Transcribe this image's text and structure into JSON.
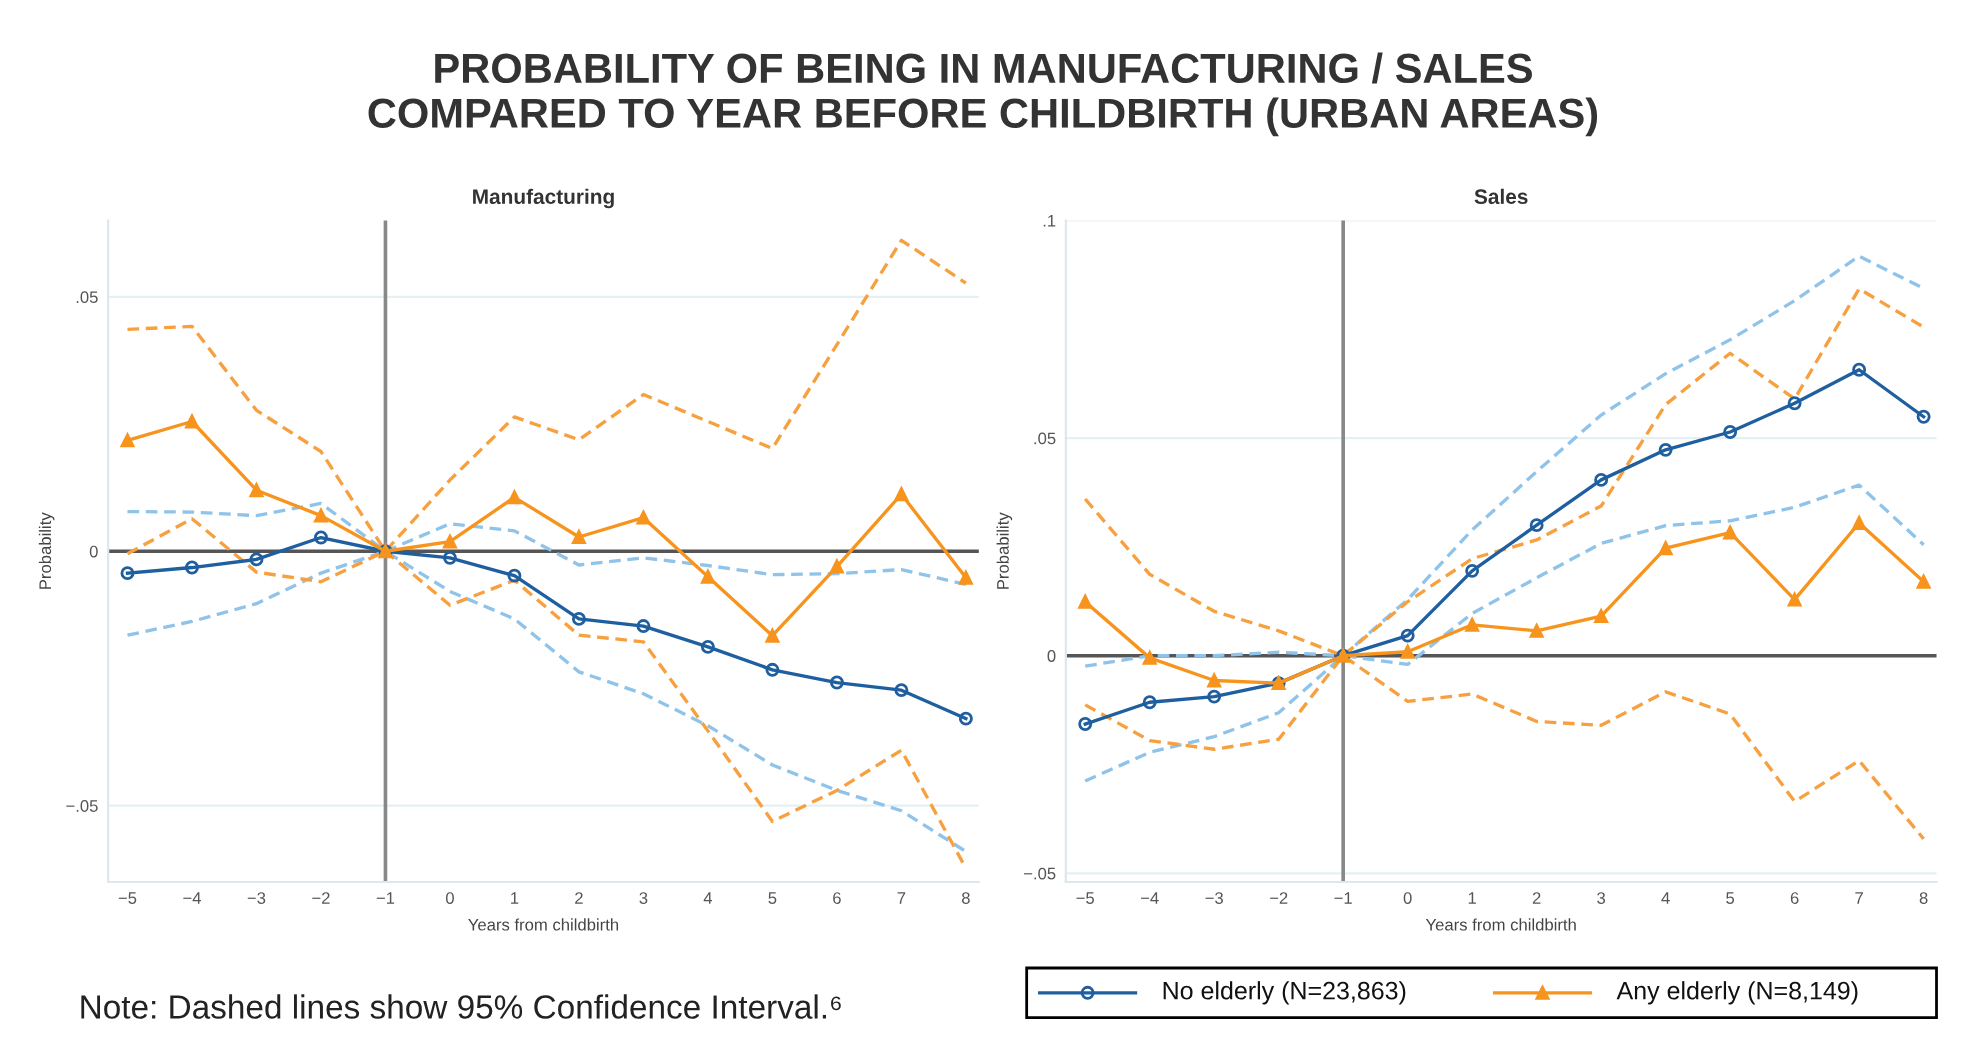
{
  "chart_data": [
    {
      "type": "line",
      "title": "PROBABILITY OF BEING IN MANUFACTURING / SALES\nCOMPARED TO YEAR BEFORE CHILDBIRTH (URBAN AREAS)",
      "subtitle": "Manufacturing",
      "xlabel": "Years from childbirth",
      "ylabel": "Probability",
      "x": [
        -5,
        -4,
        -3,
        -2,
        -1,
        0,
        1,
        2,
        3,
        4,
        5,
        6,
        7,
        8
      ],
      "xlim": [
        -5.3,
        8.2
      ],
      "xticks": [
        {
          "value": -5,
          "label": "−5"
        },
        {
          "value": -4,
          "label": "−4"
        },
        {
          "value": -3,
          "label": "−3"
        },
        {
          "value": -2,
          "label": "−2"
        },
        {
          "value": -1,
          "label": "−1"
        },
        0,
        1,
        2,
        3,
        4,
        5,
        6,
        7,
        8
      ],
      "ylim": [
        -0.065,
        0.065
      ],
      "yticks": [
        {
          "value": -0.05,
          "label": "−.05"
        },
        0,
        {
          "value": 0.05,
          "label": ".05"
        }
      ],
      "grid": "y",
      "legend": false,
      "ref_lines": [
        {
          "axis": "y",
          "value": 0,
          "color": "#555555"
        },
        {
          "axis": "x",
          "value": -1,
          "color": "#888888"
        }
      ],
      "annotations": [
        "Note: Dashed lines show 95% Confidence Interval.⁶"
      ],
      "series": [
        {
          "color": "#8fc3ea",
          "line_style": "dashed",
          "marker": "none",
          "values": [
            0.0078,
            0.0077,
            0.007,
            0.0094,
            0,
            0.0054,
            0.004,
            -0.0027,
            -0.0013,
            -0.0028,
            -0.0046,
            -0.0044,
            -0.0036,
            -0.0065
          ]
        },
        {
          "color": "#8fc3ea",
          "line_style": "dashed",
          "marker": "none",
          "values": [
            -0.0165,
            -0.0138,
            -0.0103,
            -0.0043,
            0,
            -0.0079,
            -0.0133,
            -0.0237,
            -0.028,
            -0.0343,
            -0.042,
            -0.047,
            -0.051,
            -0.059
          ]
        },
        {
          "color": "#f7a040",
          "line_style": "dashed",
          "marker": "none",
          "values": [
            0.0436,
            0.0442,
            0.0277,
            0.0196,
            0,
            0.014,
            0.0264,
            0.0219,
            0.0308,
            0.0255,
            0.0202,
            0.0406,
            0.0611,
            0.0527
          ]
        },
        {
          "color": "#f7a040",
          "line_style": "dashed",
          "marker": "none",
          "values": [
            -0.0005,
            0.0064,
            -0.0041,
            -0.006,
            0,
            -0.0106,
            -0.0057,
            -0.0165,
            -0.0178,
            -0.0353,
            -0.0531,
            -0.047,
            -0.0391,
            -0.0623
          ]
        },
        {
          "color": "#1f5fa0",
          "line_style": "solid",
          "marker": "circle",
          "values": [
            -0.0043,
            -0.0032,
            -0.0016,
            0.0027,
            0,
            -0.0013,
            -0.0048,
            -0.0133,
            -0.0147,
            -0.0188,
            -0.0233,
            -0.0258,
            -0.0273,
            -0.0329
          ]
        },
        {
          "color": "#f7941d",
          "line_style": "solid",
          "marker": "triangle",
          "values": [
            0.0218,
            0.0255,
            0.012,
            0.007,
            0,
            0.0019,
            0.0106,
            0.0028,
            0.0066,
            -0.005,
            -0.0166,
            -0.003,
            0.0112,
            -0.0052
          ]
        }
      ]
    },
    {
      "type": "line",
      "subtitle": "Sales",
      "xlabel": "Years from childbirth",
      "ylabel": "Probability",
      "x": [
        -5,
        -4,
        -3,
        -2,
        -1,
        0,
        1,
        2,
        3,
        4,
        5,
        6,
        7,
        8
      ],
      "xlim": [
        -5.3,
        8.2
      ],
      "xticks": [
        {
          "value": -5,
          "label": "−5"
        },
        {
          "value": -4,
          "label": "−4"
        },
        {
          "value": -3,
          "label": "−3"
        },
        {
          "value": -2,
          "label": "−2"
        },
        {
          "value": -1,
          "label": "−1"
        },
        0,
        1,
        2,
        3,
        4,
        5,
        6,
        7,
        8
      ],
      "ylim": [
        -0.052,
        0.1
      ],
      "yticks": [
        {
          "value": -0.05,
          "label": "−.05"
        },
        0,
        {
          "value": 0.05,
          "label": ".05"
        },
        {
          "value": 0.1,
          "label": ".1"
        }
      ],
      "grid": "y",
      "legend": "bottom",
      "ref_lines": [
        {
          "axis": "y",
          "value": 0,
          "color": "#555555"
        },
        {
          "axis": "x",
          "value": -1,
          "color": "#888888"
        }
      ],
      "series": [
        {
          "color": "#8fc3ea",
          "line_style": "dashed",
          "marker": "none",
          "values": [
            -0.0024,
            0,
            0,
            0.0008,
            0,
            0.0129,
            0.0289,
            0.0423,
            0.0553,
            0.0648,
            0.0726,
            0.0816,
            0.0918,
            0.0844
          ]
        },
        {
          "color": "#8fc3ea",
          "line_style": "dashed",
          "marker": "none",
          "values": [
            -0.0288,
            -0.0222,
            -0.0186,
            -0.0131,
            0,
            -0.002,
            0.0097,
            0.0179,
            0.0258,
            0.0299,
            0.031,
            0.0341,
            0.0392,
            0.0255
          ]
        },
        {
          "color": "#f7a040",
          "line_style": "dashed",
          "marker": "none",
          "values": [
            0.036,
            0.0187,
            0.0102,
            0.0057,
            0,
            0.0124,
            0.0223,
            0.0266,
            0.0344,
            0.0577,
            0.0695,
            0.059,
            0.0843,
            0.0755
          ]
        },
        {
          "color": "#f7a040",
          "line_style": "dashed",
          "marker": "none",
          "values": [
            -0.0113,
            -0.0195,
            -0.0215,
            -0.0192,
            0,
            -0.0105,
            -0.0088,
            -0.0151,
            -0.016,
            -0.0083,
            -0.0134,
            -0.0335,
            -0.0241,
            -0.0421
          ]
        },
        {
          "name": "No elderly (N=23,863)",
          "color": "#1f5fa0",
          "line_style": "solid",
          "marker": "circle",
          "values": [
            -0.0157,
            -0.0107,
            -0.0094,
            -0.0063,
            0,
            0.0046,
            0.0195,
            0.03,
            0.0404,
            0.0473,
            0.0514,
            0.058,
            0.0657,
            0.0549
          ]
        },
        {
          "name": "Any elderly (N=8,149)",
          "color": "#f7941d",
          "line_style": "solid",
          "marker": "triangle",
          "values": [
            0.0124,
            -0.0005,
            -0.0057,
            -0.0063,
            0,
            0.0009,
            0.0071,
            0.0057,
            0.0091,
            0.0247,
            0.0283,
            0.0129,
            0.0305,
            0.017
          ]
        }
      ]
    }
  ]
}
